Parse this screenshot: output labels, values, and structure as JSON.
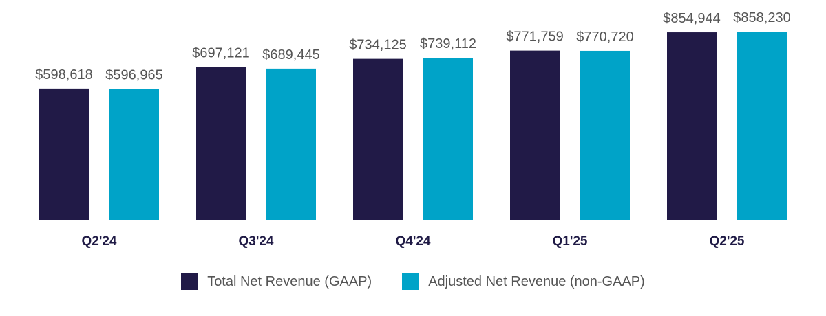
{
  "chart_data": {
    "type": "bar",
    "categories": [
      "Q2'24",
      "Q3'24",
      "Q4'24",
      "Q1'25",
      "Q2'25"
    ],
    "series": [
      {
        "name": "Total Net Revenue (GAAP)",
        "color": "#211a47",
        "values": [
          598618,
          697121,
          734125,
          771759,
          854944
        ],
        "labels": [
          "$598,618",
          "$697,121",
          "$734,125",
          "$771,759",
          "$854,944"
        ]
      },
      {
        "name": "Adjusted Net Revenue (non-GAAP)",
        "color": "#00a3c8",
        "values": [
          596965,
          689445,
          739112,
          770720,
          858230
        ],
        "labels": [
          "$596,965",
          "$689,445",
          "$739,112",
          "$770,720",
          "$858,230"
        ]
      }
    ],
    "title": "",
    "xlabel": "",
    "ylabel": "",
    "ylim": [
      0,
      858230
    ],
    "grid": false,
    "legend_position": "bottom"
  }
}
